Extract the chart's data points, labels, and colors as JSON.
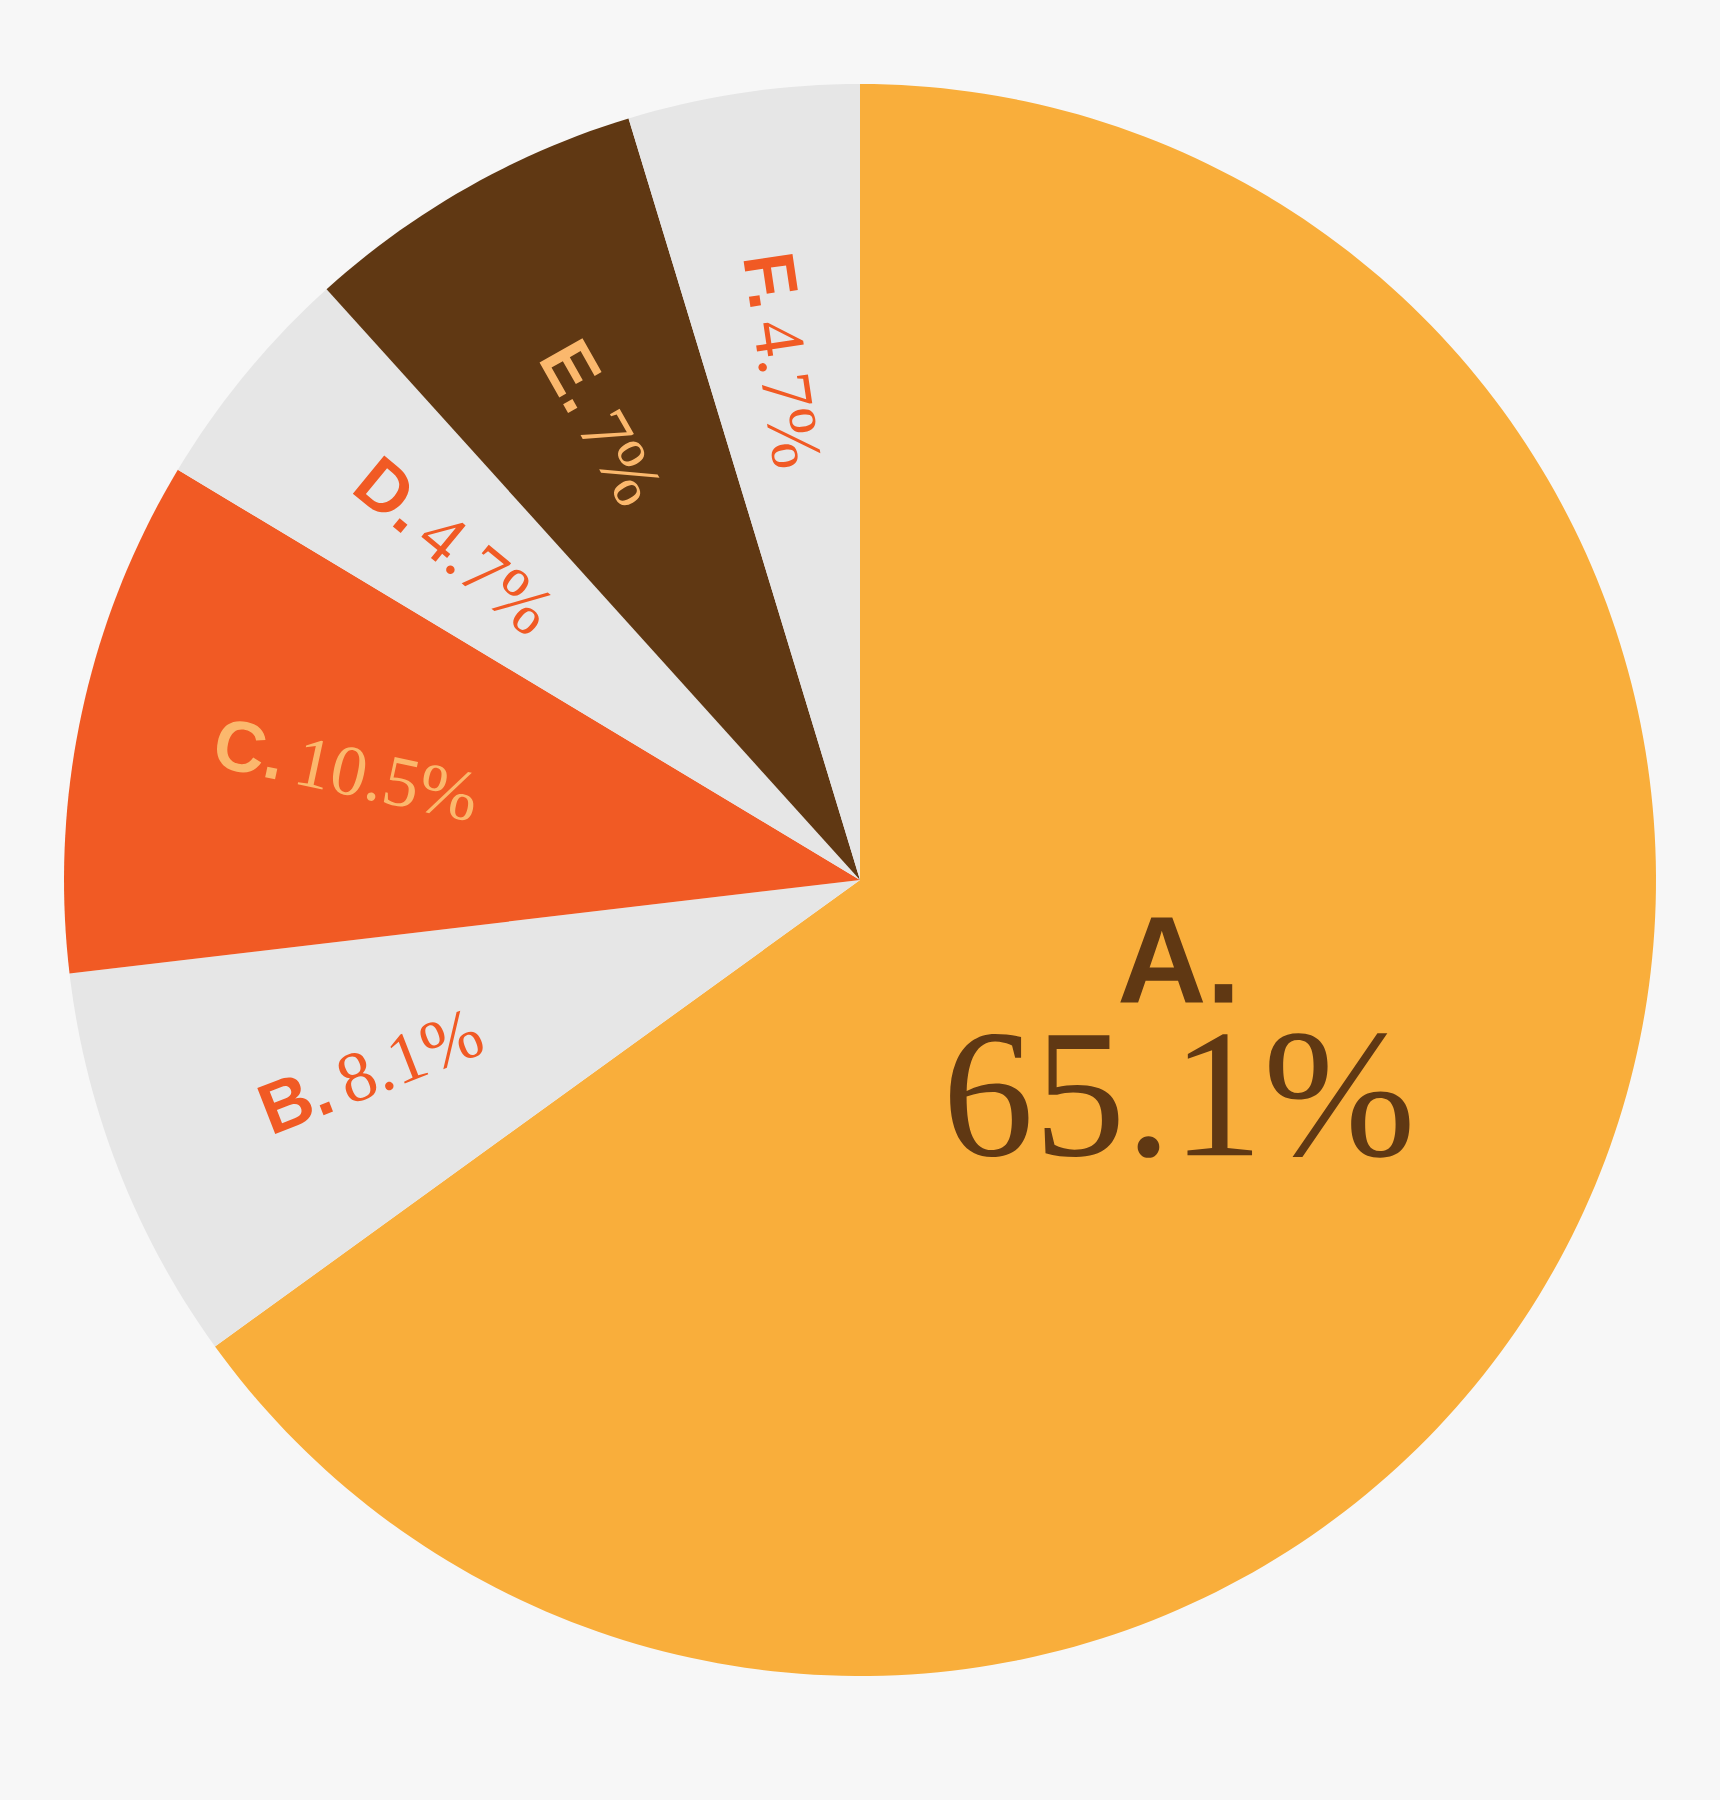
{
  "chart_data": {
    "type": "pie",
    "categories": [
      "A.",
      "B.",
      "C.",
      "D.",
      "E.",
      "F."
    ],
    "values": [
      65.1,
      8.1,
      10.5,
      4.7,
      7,
      4.7
    ],
    "value_labels": [
      "65.1%",
      "8.1%",
      "10.5%",
      "4.7%",
      "7%",
      "4.7%"
    ],
    "colors": [
      "#f9ae3b",
      "#e6e6e6",
      "#f15a24",
      "#e6e6e6",
      "#603813",
      "#e6e6e6"
    ]
  }
}
